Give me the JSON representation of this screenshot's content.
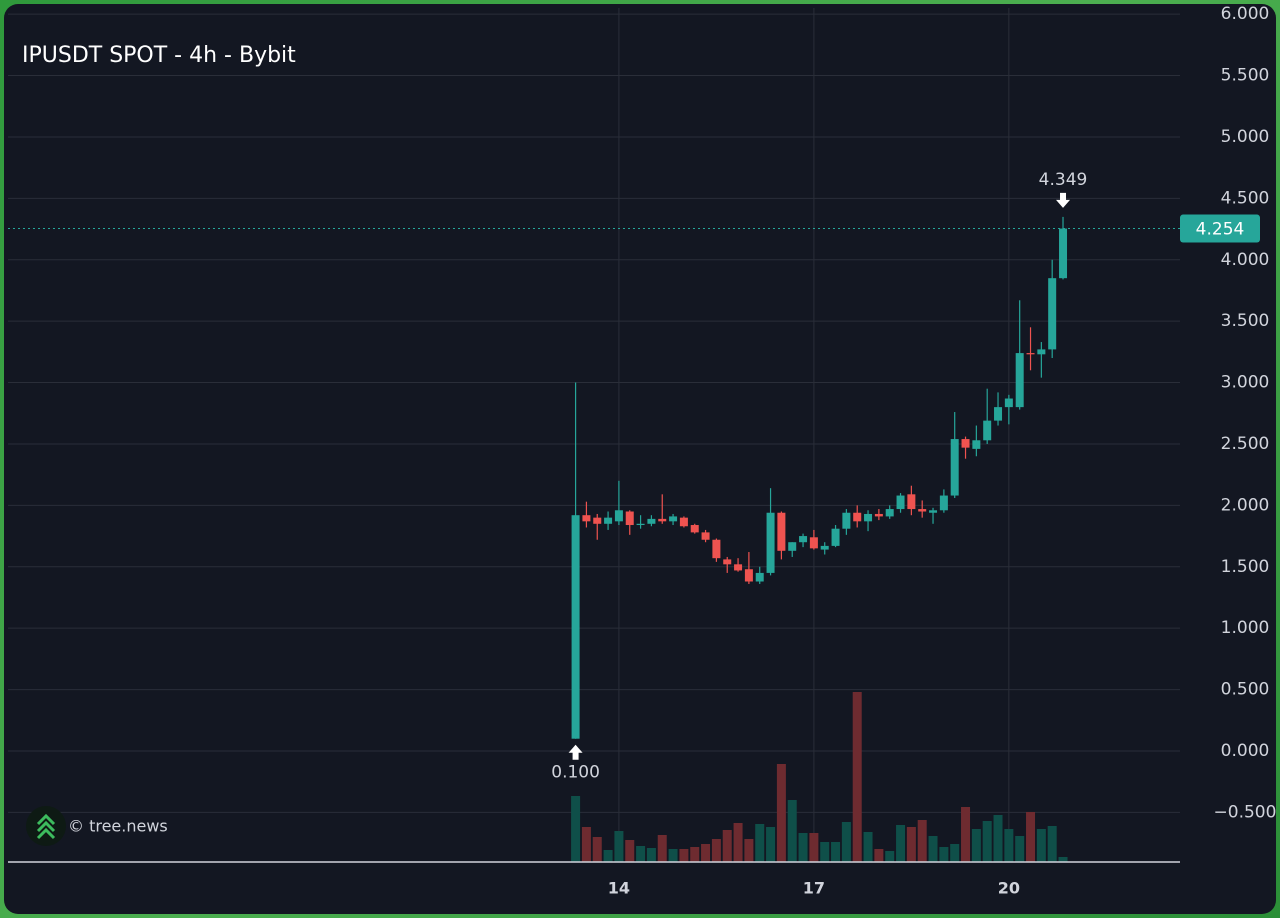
{
  "chart_data": {
    "type": "candlestick",
    "title": "IPUSDT SPOT - 4h - Bybit",
    "watermark": "© tree.news",
    "open": [
      0.1,
      1.92,
      1.9,
      1.85,
      1.87,
      1.95,
      1.84,
      1.85,
      1.89,
      1.87,
      1.9,
      1.84,
      1.78,
      1.72,
      1.56,
      1.52,
      1.48,
      1.38,
      1.45,
      1.94,
      1.63,
      1.7,
      1.74,
      1.64,
      1.67,
      1.81,
      1.94,
      1.87,
      1.93,
      1.91,
      1.97,
      2.09,
      1.97,
      1.94,
      1.96,
      2.08,
      2.54,
      2.46,
      2.53,
      2.69,
      2.8,
      2.8,
      3.24,
      3.23,
      3.27,
      3.85
    ],
    "high": [
      3.0,
      2.03,
      1.93,
      1.95,
      2.2,
      1.96,
      1.92,
      1.92,
      2.09,
      1.93,
      1.91,
      1.85,
      1.8,
      1.73,
      1.58,
      1.57,
      1.62,
      1.5,
      2.14,
      1.95,
      1.7,
      1.77,
      1.8,
      1.7,
      1.84,
      1.97,
      2.0,
      1.96,
      1.97,
      2.0,
      2.1,
      2.16,
      2.04,
      1.98,
      2.13,
      2.76,
      2.56,
      2.65,
      2.95,
      2.92,
      2.9,
      3.67,
      3.45,
      3.33,
      4.0,
      4.349
    ],
    "low": [
      0.1,
      1.82,
      1.72,
      1.8,
      1.84,
      1.76,
      1.81,
      1.83,
      1.85,
      1.84,
      1.82,
      1.77,
      1.7,
      1.54,
      1.45,
      1.46,
      1.36,
      1.36,
      1.43,
      1.56,
      1.58,
      1.66,
      1.64,
      1.6,
      1.66,
      1.76,
      1.82,
      1.79,
      1.88,
      1.89,
      1.94,
      1.92,
      1.9,
      1.85,
      1.94,
      2.06,
      2.38,
      2.4,
      2.5,
      2.65,
      2.66,
      2.78,
      3.1,
      3.04,
      3.2,
      3.84
    ],
    "close": [
      1.92,
      1.87,
      1.85,
      1.9,
      1.96,
      1.84,
      1.85,
      1.89,
      1.87,
      1.91,
      1.83,
      1.78,
      1.72,
      1.57,
      1.52,
      1.47,
      1.38,
      1.45,
      1.94,
      1.63,
      1.7,
      1.75,
      1.65,
      1.67,
      1.81,
      1.94,
      1.87,
      1.93,
      1.91,
      1.97,
      2.08,
      1.97,
      1.95,
      1.96,
      2.08,
      2.54,
      2.47,
      2.53,
      2.69,
      2.8,
      2.87,
      3.24,
      3.23,
      3.27,
      3.85,
      4.254
    ],
    "volume": [
      66,
      35,
      25,
      12,
      31,
      22,
      16,
      14,
      27,
      13,
      13,
      15,
      18,
      23,
      32,
      39,
      23,
      38,
      35,
      98,
      62,
      29,
      29,
      20,
      20,
      40,
      170,
      30,
      13,
      11,
      37,
      35,
      42,
      26,
      15,
      18,
      55,
      33,
      41,
      47,
      33,
      26,
      50,
      33,
      36,
      5
    ],
    "colors": {
      "up": "#26a69a",
      "down": "#ef5350",
      "volume_up": "#0f4f49",
      "volume_down": "#6e2b30"
    },
    "xlim": [
      -52.4,
      55.8
    ],
    "xticks": [
      {
        "value": 4,
        "label": "14"
      },
      {
        "value": 22,
        "label": "17"
      },
      {
        "value": 40,
        "label": "20"
      }
    ],
    "ylim": [
      -0.904,
      6.05
    ],
    "yticks": [
      {
        "value": -0.5,
        "label": "−0.500"
      },
      {
        "value": 0,
        "label": "0.000"
      },
      {
        "value": 0.5,
        "label": "0.500"
      },
      {
        "value": 1,
        "label": "1.000"
      },
      {
        "value": 1.5,
        "label": "1.500"
      },
      {
        "value": 2,
        "label": "2.000"
      },
      {
        "value": 2.5,
        "label": "2.500"
      },
      {
        "value": 3,
        "label": "3.000"
      },
      {
        "value": 3.5,
        "label": "3.500"
      },
      {
        "value": 4,
        "label": "4.000"
      },
      {
        "value": 4.5,
        "label": "4.500"
      },
      {
        "value": 5,
        "label": "5.000"
      },
      {
        "value": 5.5,
        "label": "5.500"
      },
      {
        "value": 6,
        "label": "6.000"
      }
    ],
    "grid": true,
    "high_marker": 4.349,
    "low_marker": {
      "value": 0.1,
      "label": "0.100"
    },
    "last_price": 4.254
  }
}
